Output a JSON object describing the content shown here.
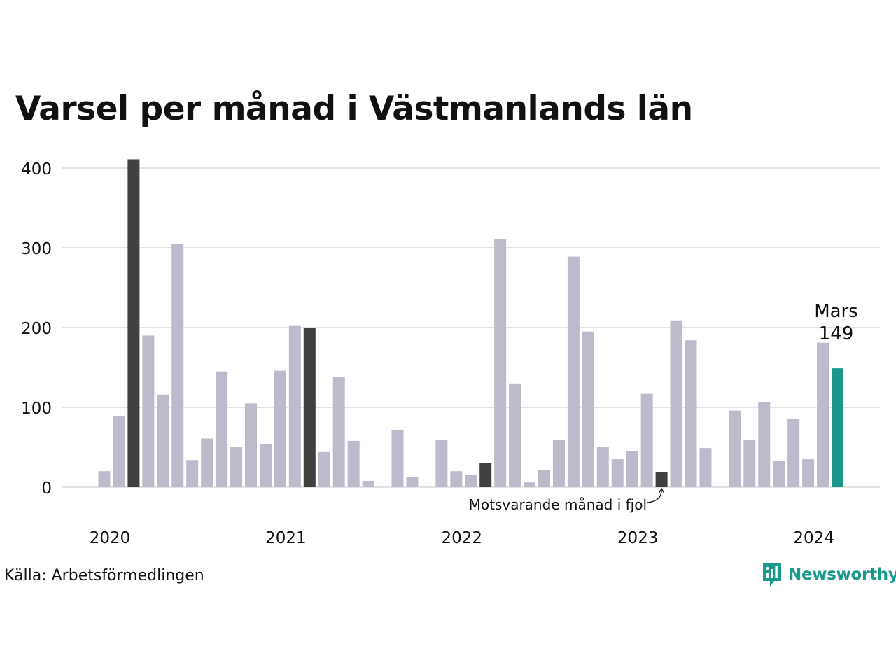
{
  "chart_data": {
    "type": "bar",
    "title": "Varsel per månad i Västmanlands län",
    "source": "Källa: Arbetsförmedlingen",
    "brand": "Newsworthy",
    "ylim": [
      0,
      400
    ],
    "yticks": [
      0,
      100,
      200,
      300,
      400
    ],
    "xticks": [
      "2020",
      "2021",
      "2022",
      "2023",
      "2024"
    ],
    "grid": true,
    "colors": {
      "default": "#bdbbcb",
      "same_month": "#404040",
      "current": "#1a968a",
      "grid": "#e3e3e3"
    },
    "highlight": {
      "label": "Mars",
      "value": "149"
    },
    "annotation": "Motsvarande månad i fjol",
    "series": [
      {
        "months": [
          "2020-01",
          "2020-02",
          "2020-03",
          "2020-04",
          "2020-05",
          "2020-06",
          "2020-07",
          "2020-08",
          "2020-09",
          "2020-10",
          "2020-11",
          "2020-12",
          "2021-01",
          "2021-02",
          "2021-03",
          "2021-04",
          "2021-05",
          "2021-06",
          "2021-07",
          "2021-08",
          "2021-09",
          "2021-10",
          "2021-11",
          "2021-12",
          "2022-01",
          "2022-02",
          "2022-03",
          "2022-04",
          "2022-05",
          "2022-06",
          "2022-07",
          "2022-08",
          "2022-09",
          "2022-10",
          "2022-11",
          "2022-12",
          "2023-01",
          "2023-02",
          "2023-03",
          "2023-04",
          "2023-05",
          "2023-06",
          "2023-07",
          "2023-08",
          "2023-09",
          "2023-10",
          "2023-11",
          "2023-12",
          "2024-01",
          "2024-02",
          "2024-03"
        ],
        "values": [
          20,
          89,
          411,
          190,
          116,
          305,
          34,
          61,
          145,
          50,
          105,
          54,
          146,
          202,
          200,
          44,
          138,
          58,
          8,
          0,
          72,
          13,
          0,
          59,
          20,
          15,
          30,
          311,
          130,
          6,
          22,
          59,
          289,
          195,
          50,
          35,
          45,
          117,
          19,
          209,
          184,
          49,
          0,
          96,
          59,
          107,
          33,
          86,
          35,
          181,
          149
        ],
        "kind": [
          "d",
          "d",
          "s",
          "d",
          "d",
          "d",
          "d",
          "d",
          "d",
          "d",
          "d",
          "d",
          "d",
          "d",
          "s",
          "d",
          "d",
          "d",
          "d",
          "d",
          "d",
          "d",
          "d",
          "d",
          "d",
          "d",
          "s",
          "d",
          "d",
          "d",
          "d",
          "d",
          "d",
          "d",
          "d",
          "d",
          "d",
          "d",
          "s",
          "d",
          "d",
          "d",
          "d",
          "d",
          "d",
          "d",
          "d",
          "d",
          "d",
          "d",
          "c"
        ]
      }
    ]
  }
}
